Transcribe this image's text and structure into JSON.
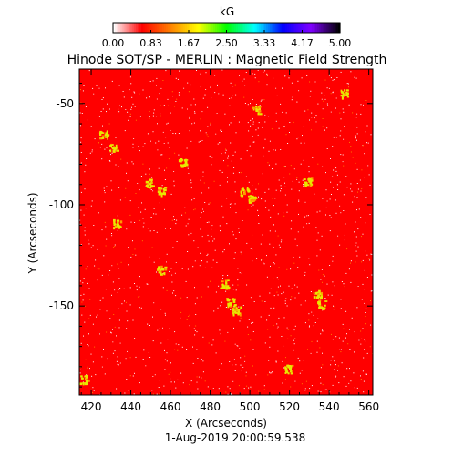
{
  "chart_data": {
    "type": "heatmap",
    "title": "Hinode SOT/SP - MERLIN : Magnetic Field Strength",
    "xlabel": "X (Arcseconds)",
    "ylabel": "Y (Arcseconds)",
    "timestamp": "1-Aug-2019 20:00:59.538",
    "xlim": [
      414,
      562
    ],
    "ylim": [
      -194,
      -33
    ],
    "x_ticks": [
      420,
      440,
      460,
      480,
      500,
      520,
      540,
      560
    ],
    "y_ticks": [
      -50,
      -100,
      -150
    ],
    "colorbar": {
      "label": "kG",
      "range": [
        0.0,
        5.0
      ],
      "tick_labels": [
        "0.00",
        "0.83",
        "1.67",
        "2.50",
        "3.33",
        "4.17",
        "5.00"
      ],
      "colormap": [
        "#ffffff",
        "#ff0000",
        "#ff8000",
        "#ffff00",
        "#00ff00",
        "#00ffff",
        "#0000ff",
        "#8000ff",
        "#000000"
      ]
    },
    "background_strength_kG": 0.4,
    "background_color": "#ff0000",
    "strong_field_color": "#e8e800",
    "strong_field_regions": [
      {
        "x": 426,
        "y": -65,
        "kG": 1.5
      },
      {
        "x": 431,
        "y": -71,
        "kG": 1.5
      },
      {
        "x": 433,
        "y": -109,
        "kG": 1.4
      },
      {
        "x": 449,
        "y": -89,
        "kG": 1.4
      },
      {
        "x": 455,
        "y": -93,
        "kG": 1.3
      },
      {
        "x": 466,
        "y": -79,
        "kG": 1.3
      },
      {
        "x": 487,
        "y": -139,
        "kG": 1.5
      },
      {
        "x": 490,
        "y": -148,
        "kG": 1.6
      },
      {
        "x": 493,
        "y": -152,
        "kG": 1.6
      },
      {
        "x": 497,
        "y": -93,
        "kG": 1.4
      },
      {
        "x": 501,
        "y": -97,
        "kG": 1.5
      },
      {
        "x": 503,
        "y": -53,
        "kG": 1.3
      },
      {
        "x": 529,
        "y": -88,
        "kG": 1.3
      },
      {
        "x": 534,
        "y": -144,
        "kG": 1.5
      },
      {
        "x": 536,
        "y": -149,
        "kG": 1.5
      },
      {
        "x": 519,
        "y": -181,
        "kG": 1.3
      },
      {
        "x": 416,
        "y": -186,
        "kG": 1.3
      },
      {
        "x": 455,
        "y": -132,
        "kG": 1.3
      },
      {
        "x": 547,
        "y": -45,
        "kG": 1.3
      }
    ]
  }
}
